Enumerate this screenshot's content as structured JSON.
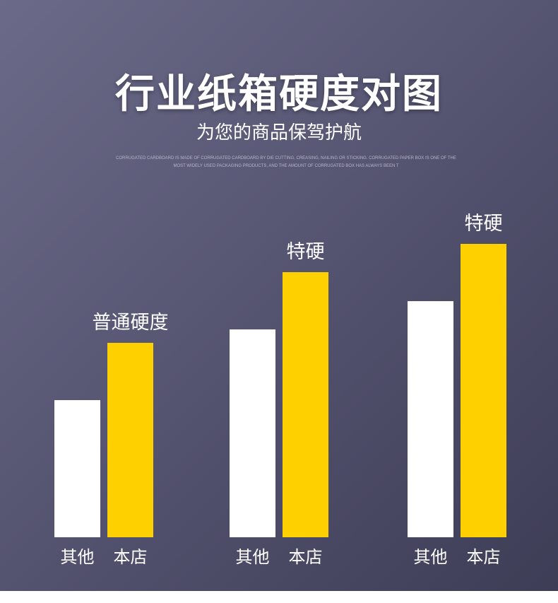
{
  "header": {
    "title": "行业纸箱硬度对图",
    "subtitle": "为您的商品保驾护航",
    "fine_print": "CORRUGATED CARDBOARD IS MADE OF CORRUGATED CARDBOARD BY DIE CUTTING, CREASING, NAILING OR STICKING. CORRUGATED PAPER BOX IS ONE OF THE MOST WIDELY USED PACKAGING PRODUCTS, AND THE AMOUNT OF CORRUGATED BOX HAS ALWAYS BEEN T"
  },
  "colors": {
    "background_start": "#6b6a88",
    "background_end": "#3e3d56",
    "other_bar": "#ffffff",
    "store_bar": "#ffd000",
    "text": "#ffffff"
  },
  "chart_data": {
    "type": "bar",
    "title": "行业纸箱硬度对图",
    "xlabel": "",
    "ylabel": "",
    "grid": false,
    "legend": "none",
    "groups": [
      {
        "label": "普通硬度",
        "bars": [
          {
            "name": "其他",
            "value": 194
          },
          {
            "name": "本店",
            "value": 275
          }
        ]
      },
      {
        "label": "特硬",
        "bars": [
          {
            "name": "其他",
            "value": 294
          },
          {
            "name": "本店",
            "value": 375
          }
        ]
      },
      {
        "label": "特硬",
        "bars": [
          {
            "name": "其他",
            "value": 334
          },
          {
            "name": "本店",
            "value": 415
          }
        ]
      }
    ],
    "ylim": [
      0,
      415
    ]
  }
}
